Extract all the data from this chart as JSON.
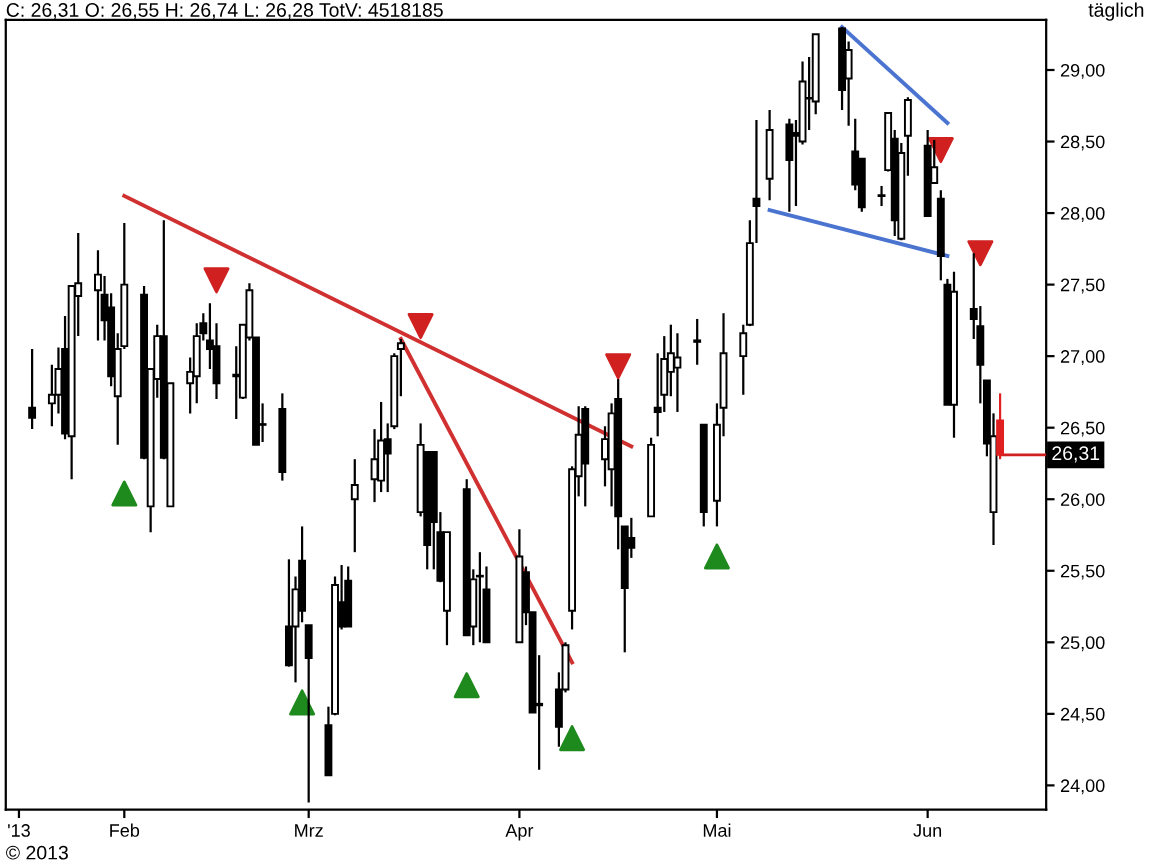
{
  "chart_data": {
    "type": "candlestick",
    "title": "C: 26,31 O: 26,55 H: 26,74 L: 26,28 TotV: 4518185",
    "subtitle": "täglich",
    "annotations": [
      {
        "text": "26,31",
        "x": "2013-06-14",
        "y": 26.31
      },
      "© 2013"
    ],
    "x": [
      "2013-01-18",
      "2013-01-21",
      "2013-01-22",
      "2013-01-23",
      "2013-01-24",
      "2013-01-25",
      "2013-01-28",
      "2013-01-29",
      "2013-01-30",
      "2013-01-31",
      "2013-02-01",
      "2013-02-04",
      "2013-02-05",
      "2013-02-06",
      "2013-02-07",
      "2013-02-08",
      "2013-02-11",
      "2013-02-12",
      "2013-02-13",
      "2013-02-14",
      "2013-02-15",
      "2013-02-18",
      "2013-02-19",
      "2013-02-20",
      "2013-02-21",
      "2013-02-22",
      "2013-02-25",
      "2013-02-26",
      "2013-02-27",
      "2013-02-28",
      "2013-03-01",
      "2013-03-04",
      "2013-03-05",
      "2013-03-06",
      "2013-03-07",
      "2013-03-08",
      "2013-03-11",
      "2013-03-12",
      "2013-03-13",
      "2013-03-14",
      "2013-03-15",
      "2013-03-18",
      "2013-03-19",
      "2013-03-20",
      "2013-03-21",
      "2013-03-22",
      "2013-03-25",
      "2013-03-26",
      "2013-03-27",
      "2013-03-28",
      "2013-04-02",
      "2013-04-03",
      "2013-04-04",
      "2013-04-05",
      "2013-04-08",
      "2013-04-09",
      "2013-04-10",
      "2013-04-11",
      "2013-04-12",
      "2013-04-15",
      "2013-04-16",
      "2013-04-17",
      "2013-04-18",
      "2013-04-19",
      "2013-04-22",
      "2013-04-23",
      "2013-04-24",
      "2013-04-25",
      "2013-04-26",
      "2013-04-29",
      "2013-04-30",
      "2013-05-02",
      "2013-05-03",
      "2013-05-06",
      "2013-05-07",
      "2013-05-08",
      "2013-05-10",
      "2013-05-13",
      "2013-05-14",
      "2013-05-15",
      "2013-05-16",
      "2013-05-17",
      "2013-05-21",
      "2013-05-22",
      "2013-05-23",
      "2013-05-24",
      "2013-05-27",
      "2013-05-28",
      "2013-05-29",
      "2013-05-30",
      "2013-05-31",
      "2013-06-03",
      "2013-06-04",
      "2013-06-05",
      "2013-06-06",
      "2013-06-07",
      "2013-06-10",
      "2013-06-11",
      "2013-06-12",
      "2013-06-13",
      "2013-06-14"
    ],
    "ohlc": [
      [
        26.64,
        27.05,
        26.49,
        26.57
      ],
      [
        26.67,
        26.94,
        26.51,
        26.73
      ],
      [
        26.73,
        27.06,
        26.6,
        26.91
      ],
      [
        27.05,
        27.28,
        26.42,
        26.46
      ],
      [
        26.44,
        27.49,
        26.14,
        27.49
      ],
      [
        27.42,
        27.86,
        27.14,
        27.51
      ],
      [
        27.46,
        27.74,
        27.11,
        27.57
      ],
      [
        27.43,
        27.56,
        27.11,
        27.25
      ],
      [
        27.34,
        27.44,
        26.79,
        26.86
      ],
      [
        26.72,
        27.16,
        26.38,
        27.05
      ],
      [
        27.07,
        27.93,
        27.05,
        27.5
      ],
      [
        27.43,
        27.49,
        26.28,
        26.29
      ],
      [
        25.95,
        26.91,
        25.77,
        26.91
      ],
      [
        26.84,
        27.22,
        26.71,
        27.14
      ],
      [
        27.14,
        27.95,
        26.28,
        26.29
      ],
      [
        25.95,
        26.81,
        25.95,
        26.81
      ],
      [
        26.81,
        26.99,
        26.6,
        26.89
      ],
      [
        26.86,
        27.23,
        26.67,
        27.14
      ],
      [
        27.23,
        27.3,
        27.11,
        27.16
      ],
      [
        27.11,
        27.37,
        26.91,
        27.05
      ],
      [
        27.07,
        27.23,
        26.7,
        26.81
      ],
      [
        26.87,
        27.07,
        26.56,
        26.86
      ],
      [
        26.71,
        27.22,
        26.7,
        27.22
      ],
      [
        27.13,
        27.51,
        27.11,
        27.46
      ],
      [
        27.13,
        27.13,
        26.38,
        26.38
      ],
      [
        26.52,
        26.67,
        26.4,
        26.52
      ],
      [
        26.63,
        26.74,
        26.13,
        26.19
      ],
      [
        25.11,
        25.58,
        24.83,
        24.84
      ],
      [
        25.11,
        25.46,
        24.72,
        25.37
      ],
      [
        25.57,
        25.81,
        25.14,
        25.22
      ],
      [
        25.12,
        25.12,
        23.88,
        24.89
      ],
      [
        24.42,
        24.55,
        24.07,
        24.07
      ],
      [
        24.5,
        25.46,
        24.49,
        25.4
      ],
      [
        25.28,
        25.54,
        25.09,
        25.11
      ],
      [
        25.43,
        25.53,
        25.11,
        25.11
      ],
      [
        26.0,
        26.28,
        25.63,
        26.1
      ],
      [
        26.14,
        26.49,
        25.98,
        26.28
      ],
      [
        26.13,
        26.68,
        26.05,
        26.41
      ],
      [
        26.42,
        26.53,
        26.05,
        26.32
      ],
      [
        26.51,
        27.02,
        26.49,
        27.0
      ],
      [
        27.05,
        27.12,
        26.72,
        27.09
      ],
      [
        25.91,
        26.53,
        25.88,
        26.38
      ],
      [
        26.33,
        26.33,
        25.51,
        25.68
      ],
      [
        26.33,
        26.33,
        25.51,
        25.84
      ],
      [
        25.77,
        25.91,
        25.42,
        25.43
      ],
      [
        25.22,
        25.77,
        24.98,
        25.77
      ],
      [
        26.07,
        26.14,
        25.05,
        25.05
      ],
      [
        25.11,
        25.51,
        24.98,
        25.44
      ],
      [
        25.46,
        25.63,
        25.0,
        25.46
      ],
      [
        25.37,
        25.53,
        25.0,
        25.0
      ],
      [
        25.0,
        25.79,
        25.0,
        25.6
      ],
      [
        25.49,
        25.53,
        25.12,
        25.21
      ],
      [
        25.21,
        25.21,
        24.51,
        24.51
      ],
      [
        24.56,
        24.91,
        24.11,
        24.57
      ],
      [
        24.67,
        24.79,
        24.27,
        24.41
      ],
      [
        24.67,
        25.0,
        24.65,
        24.98
      ],
      [
        25.22,
        26.23,
        25.09,
        26.21
      ],
      [
        26.16,
        26.65,
        26.02,
        26.45
      ],
      [
        26.63,
        26.65,
        25.95,
        26.25
      ],
      [
        26.28,
        26.51,
        26.09,
        26.42
      ],
      [
        26.21,
        26.67,
        25.95,
        26.6
      ],
      [
        26.7,
        26.84,
        25.65,
        25.88
      ],
      [
        25.81,
        25.81,
        24.93,
        25.38
      ],
      [
        25.73,
        25.87,
        25.59,
        25.66
      ],
      [
        25.88,
        26.43,
        25.88,
        26.38
      ],
      [
        26.64,
        27.02,
        26.44,
        26.61
      ],
      [
        26.73,
        27.14,
        26.61,
        26.98
      ],
      [
        26.89,
        27.22,
        26.72,
        27.02
      ],
      [
        26.92,
        27.16,
        26.61,
        26.99
      ],
      [
        27.1,
        27.26,
        26.94,
        27.11
      ],
      [
        26.52,
        26.52,
        25.81,
        25.91
      ],
      [
        25.99,
        26.67,
        25.81,
        26.52
      ],
      [
        26.64,
        27.3,
        26.44,
        27.02
      ],
      [
        27.0,
        27.22,
        26.73,
        27.16
      ],
      [
        27.22,
        27.95,
        27.21,
        27.79
      ],
      [
        28.1,
        28.65,
        27.79,
        28.05
      ],
      [
        28.24,
        28.72,
        28.09,
        28.58
      ],
      [
        28.62,
        28.66,
        28.01,
        28.37
      ],
      [
        28.56,
        28.65,
        28.05,
        28.54
      ],
      [
        28.5,
        29.06,
        28.48,
        28.92
      ],
      [
        28.8,
        29.09,
        28.58,
        28.8
      ],
      [
        28.78,
        29.25,
        28.69,
        29.25
      ],
      [
        29.29,
        29.3,
        28.72,
        28.86
      ],
      [
        28.94,
        29.2,
        28.61,
        29.14
      ],
      [
        28.43,
        28.66,
        28.16,
        28.2
      ],
      [
        28.38,
        28.38,
        28.01,
        28.04
      ],
      [
        28.12,
        28.19,
        28.05,
        28.12
      ],
      [
        28.3,
        28.7,
        28.29,
        28.7
      ],
      [
        28.52,
        28.58,
        27.84,
        27.95
      ],
      [
        27.82,
        28.49,
        27.81,
        28.42
      ],
      [
        28.54,
        28.81,
        28.26,
        28.79
      ],
      [
        28.47,
        28.58,
        27.98,
        27.98
      ],
      [
        28.21,
        28.51,
        28.21,
        28.32
      ],
      [
        28.1,
        28.16,
        27.53,
        27.7
      ],
      [
        27.5,
        27.54,
        26.66,
        26.66
      ],
      [
        26.66,
        27.59,
        26.43,
        27.45
      ],
      [
        27.33,
        27.72,
        27.12,
        27.26
      ],
      [
        27.21,
        27.35,
        26.67,
        26.94
      ],
      [
        26.83,
        26.83,
        26.3,
        26.39
      ],
      [
        25.91,
        26.6,
        25.68,
        26.44
      ],
      [
        26.55,
        26.74,
        26.28,
        26.31
      ]
    ],
    "colors": [
      "#000000",
      "#ffffff",
      "#ffffff",
      "#000000",
      "#ffffff",
      "#ffffff",
      "#ffffff",
      "#000000",
      "#000000",
      "#ffffff",
      "#ffffff",
      "#000000",
      "#ffffff",
      "#ffffff",
      "#000000",
      "#ffffff",
      "#ffffff",
      "#ffffff",
      "#000000",
      "#000000",
      "#000000",
      "#000000",
      "#ffffff",
      "#ffffff",
      "#000000",
      "#ffffff",
      "#000000",
      "#000000",
      "#ffffff",
      "#000000",
      "#000000",
      "#000000",
      "#ffffff",
      "#000000",
      "#000000",
      "#ffffff",
      "#ffffff",
      "#ffffff",
      "#000000",
      "#ffffff",
      "#ffffff",
      "#ffffff",
      "#000000",
      "#000000",
      "#000000",
      "#ffffff",
      "#000000",
      "#ffffff",
      "#ffffff",
      "#000000",
      "#ffffff",
      "#000000",
      "#000000",
      "#ffffff",
      "#000000",
      "#ffffff",
      "#ffffff",
      "#ffffff",
      "#000000",
      "#ffffff",
      "#ffffff",
      "#000000",
      "#000000",
      "#000000",
      "#ffffff",
      "#000000",
      "#ffffff",
      "#ffffff",
      "#ffffff",
      "#ffffff",
      "#000000",
      "#ffffff",
      "#ffffff",
      "#ffffff",
      "#ffffff",
      "#000000",
      "#ffffff",
      "#000000",
      "#000000",
      "#ffffff",
      "#ffffff",
      "#ffffff",
      "#000000",
      "#ffffff",
      "#000000",
      "#000000",
      "#ffffff",
      "#ffffff",
      "#000000",
      "#ffffff",
      "#ffffff",
      "#000000",
      "#ffffff",
      "#000000",
      "#000000",
      "#ffffff",
      "#000000",
      "#000000",
      "#000000",
      "#ffffff",
      "#e02020"
    ],
    "series": [
      {
        "type": "line",
        "color": "#d03030",
        "x": [
          "2013-02-01",
          "2013-04-19"
        ],
        "values": [
          28.12,
          26.37
        ]
      },
      {
        "type": "line",
        "color": "#d03030",
        "x": [
          "2013-03-15",
          "2013-04-10"
        ],
        "values": [
          27.12,
          24.86
        ]
      },
      {
        "type": "line",
        "color": "#4a74d0",
        "x": [
          "2013-05-21",
          "2013-06-06"
        ],
        "values": [
          29.3,
          28.63
        ]
      },
      {
        "type": "line",
        "color": "#4a74d0",
        "x": [
          "2013-05-10",
          "2013-06-06"
        ],
        "values": [
          28.02,
          27.7
        ]
      },
      {
        "type": "scatter",
        "marker": "triangle",
        "color": "#1e8a1e",
        "x": [
          "2013-02-01",
          "2013-02-28",
          "2013-03-25",
          "2013-04-10",
          "2013-05-02"
        ],
        "values": [
          26.04,
          24.58,
          24.7,
          24.33,
          25.6
        ]
      },
      {
        "type": "scatter",
        "marker": "triangle_down",
        "color": "#d02020",
        "x": [
          "2013-02-15",
          "2013-03-18",
          "2013-04-17",
          "2013-06-05",
          "2013-06-11"
        ],
        "values": [
          27.53,
          27.21,
          26.93,
          28.44,
          27.72
        ]
      }
    ],
    "xlim": [
      "2013-01-14",
      "2013-06-21"
    ],
    "xticks": [
      {
        "value": "2013-01-16",
        "label": "'13"
      },
      {
        "value": "2013-02-01",
        "label": "Feb"
      },
      {
        "value": "2013-03-01",
        "label": "Mrz"
      },
      {
        "value": "2013-04-02",
        "label": "Apr"
      },
      {
        "value": "2013-05-02",
        "label": "Mai"
      },
      {
        "value": "2013-06-03",
        "label": "Jun"
      }
    ],
    "ylim": [
      23.83,
      29.35
    ],
    "yticks": [
      {
        "value": 24,
        "label": "24,00"
      },
      {
        "value": 24.5,
        "label": "24,50"
      },
      {
        "value": 25,
        "label": "25,00"
      },
      {
        "value": 25.5,
        "label": "25,50"
      },
      {
        "value": 26,
        "label": "26,00"
      },
      {
        "value": 26.5,
        "label": "26,50"
      },
      {
        "value": 27,
        "label": "27,00"
      },
      {
        "value": 27.5,
        "label": "27,50"
      },
      {
        "value": 28,
        "label": "28,00"
      },
      {
        "value": 28.5,
        "label": "28,50"
      },
      {
        "value": 29,
        "label": "29,00"
      }
    ],
    "grid": false,
    "legend": false
  }
}
